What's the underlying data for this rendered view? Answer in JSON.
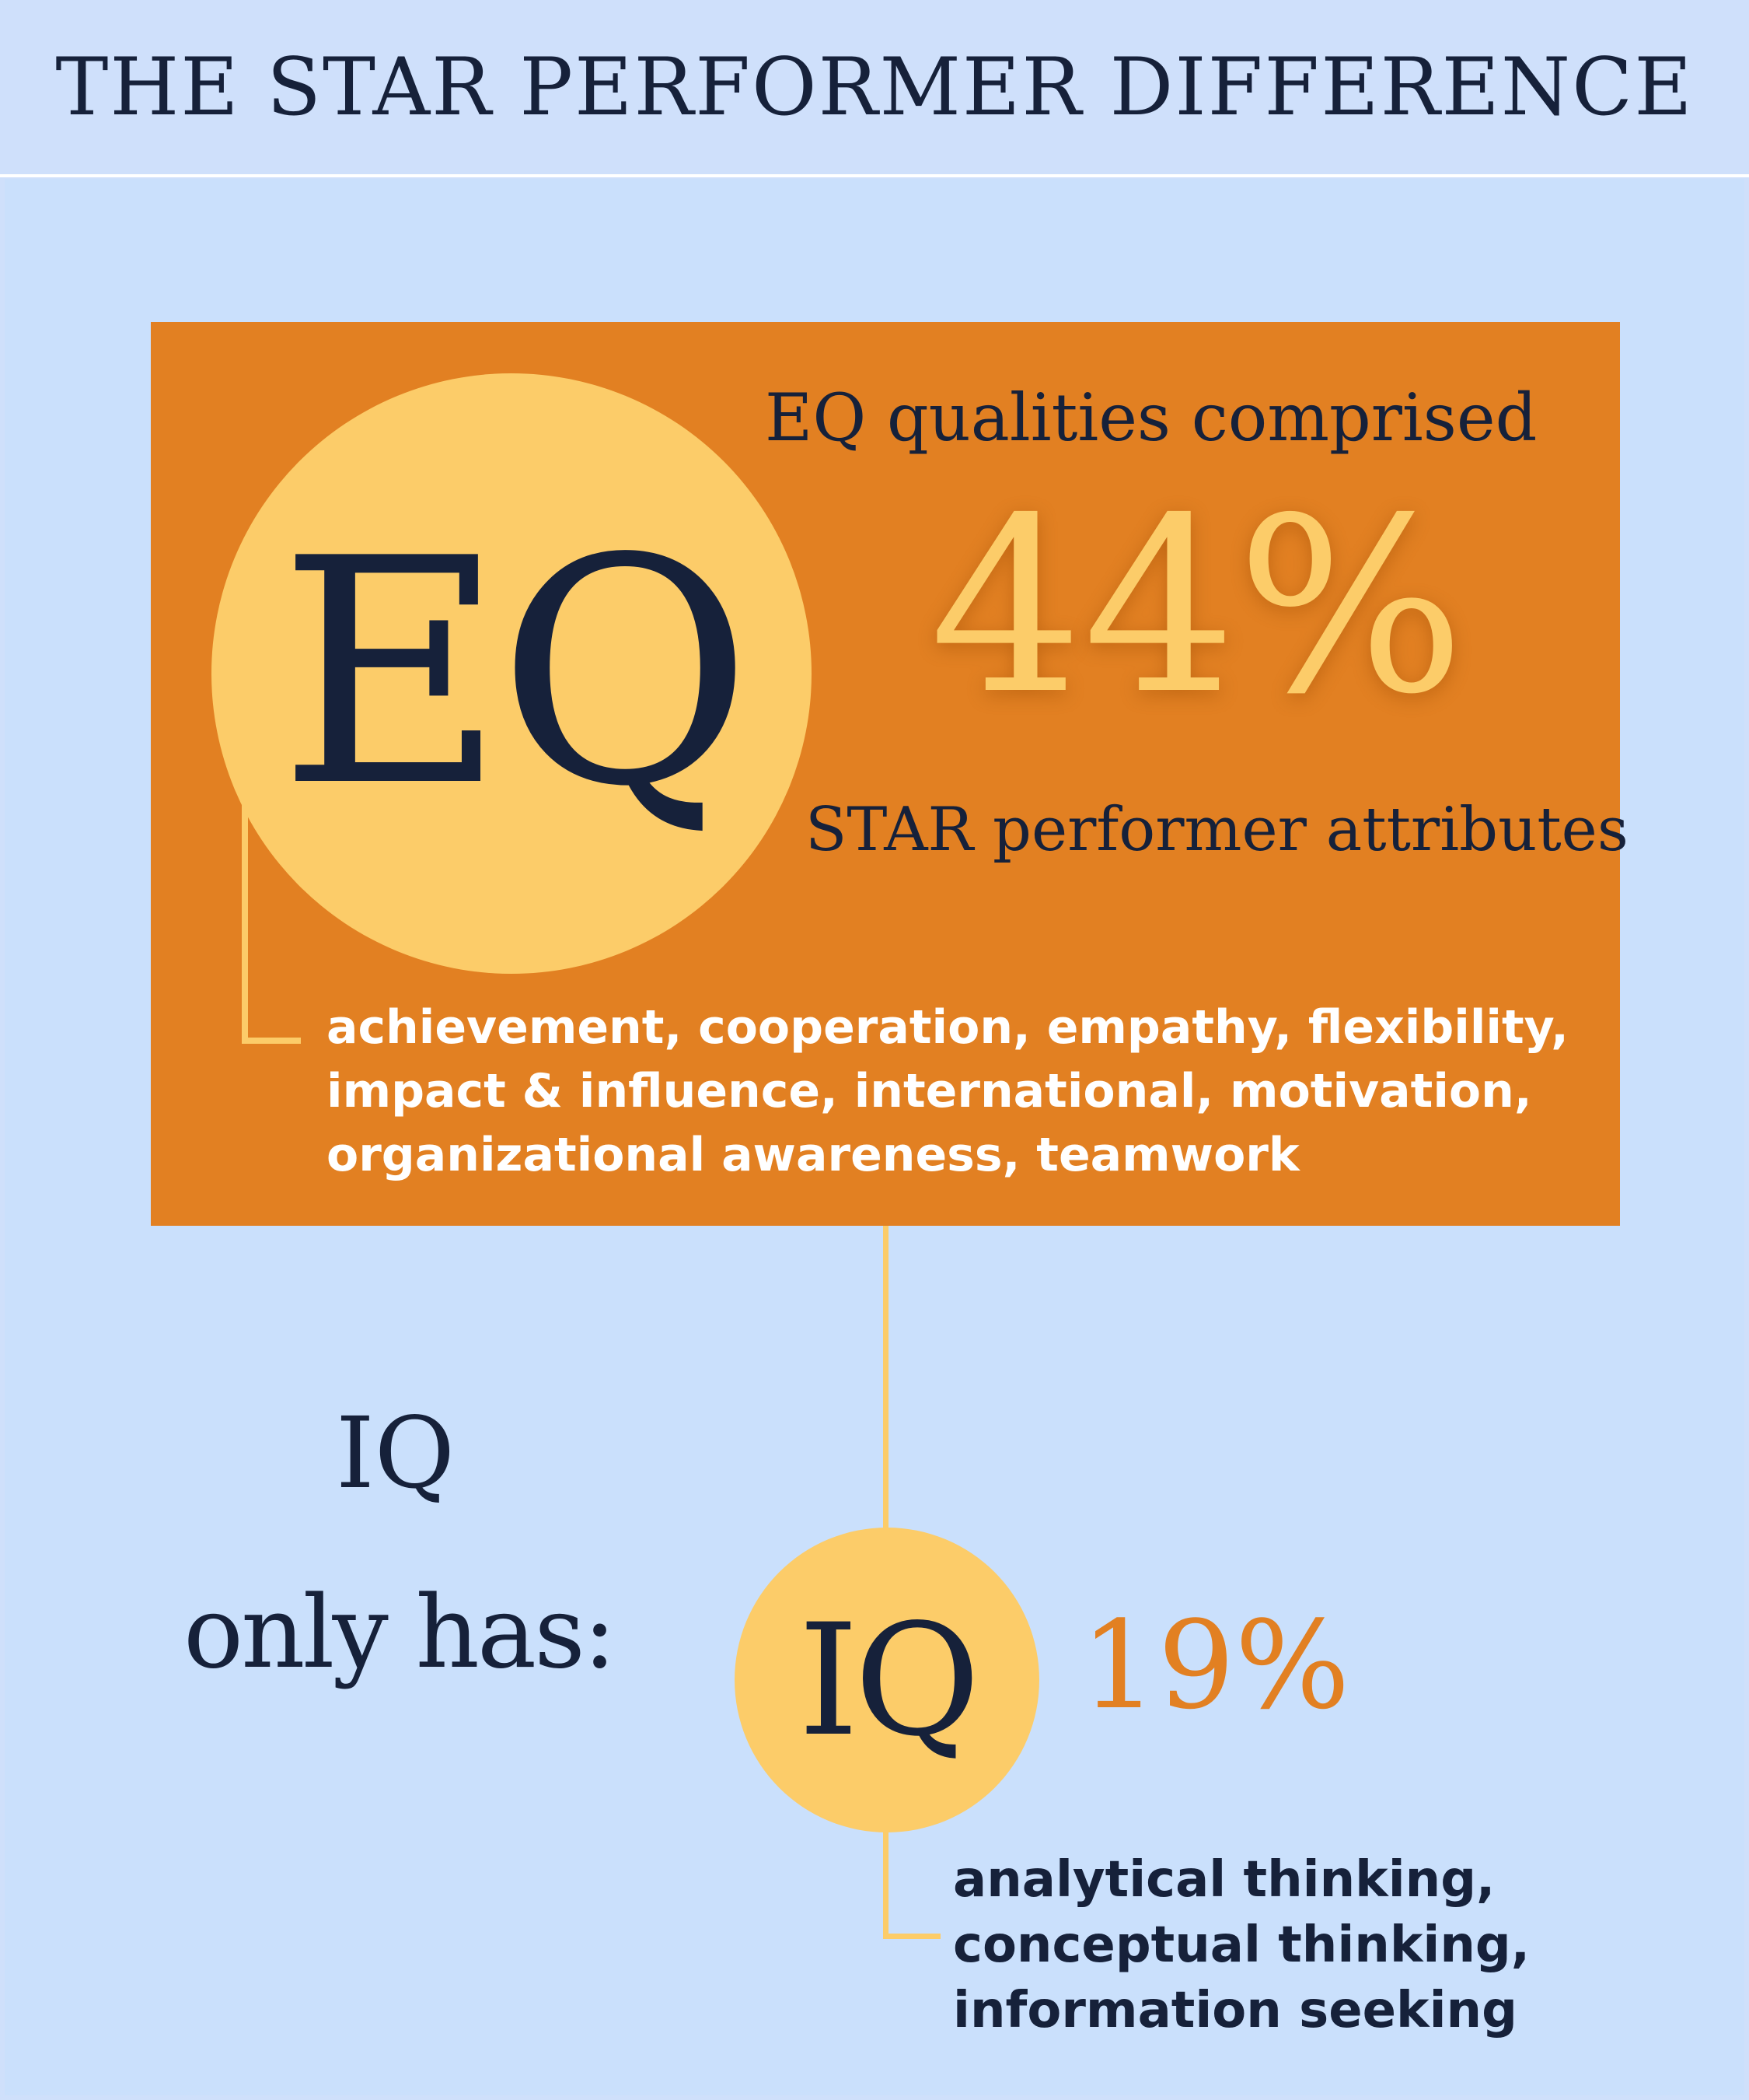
{
  "header": {
    "title": "THE STAR PERFORMER DIFFERENCE"
  },
  "eq": {
    "circle_label": "EQ",
    "top_text": "EQ qualities comprised",
    "percent": "44%",
    "bottom_text": "STAR performer attributes",
    "list_lines": [
      "achievement, cooperation, empathy, flexibility,",
      "impact & influence, international, motivation,",
      "organizational awareness, teamwork"
    ]
  },
  "iq": {
    "side_label_1": "IQ",
    "side_label_2": "only has:",
    "circle_label": "IQ",
    "percent": "19%",
    "list_lines": [
      "analytical thinking,",
      "conceptual thinking,",
      "information seeking"
    ]
  },
  "colors": {
    "background": "#cae0fc",
    "orange": "#e28022",
    "yellow": "#fccc69",
    "navy": "#16213a"
  }
}
